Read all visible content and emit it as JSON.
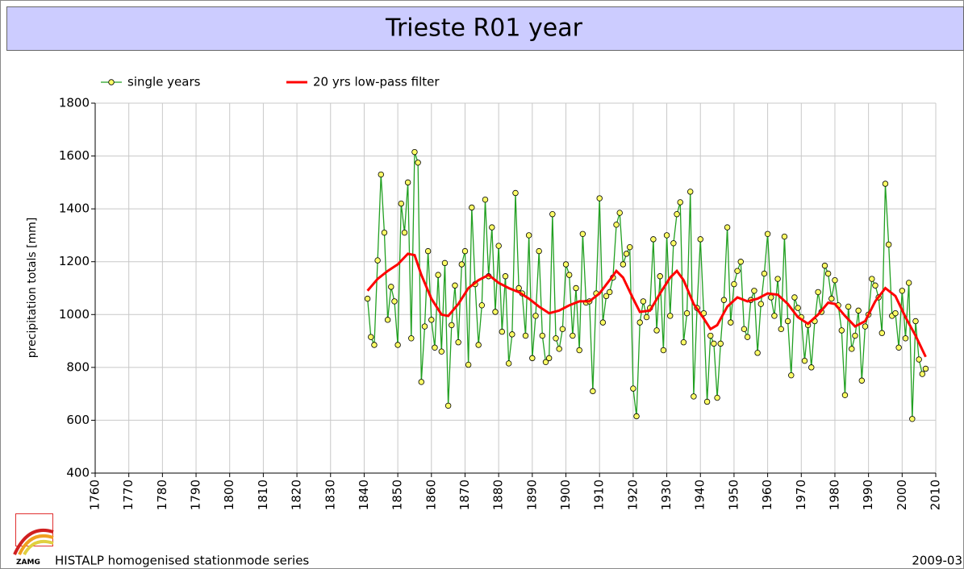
{
  "chart_data": {
    "type": "line",
    "title": "Trieste R01 year",
    "ylabel": "precipitation totals [mm]",
    "footer": "HISTALP homogenised stationmode series",
    "date": "2009-03",
    "logo": "ZAMG",
    "xlim": [
      1760,
      2010
    ],
    "ylim": [
      400,
      1800
    ],
    "xticks": [
      1760,
      1770,
      1780,
      1790,
      1800,
      1810,
      1820,
      1830,
      1840,
      1850,
      1860,
      1870,
      1880,
      1890,
      1900,
      1910,
      1920,
      1930,
      1940,
      1950,
      1960,
      1970,
      1980,
      1990,
      2000,
      2010
    ],
    "yticks": [
      400,
      600,
      800,
      1000,
      1200,
      1400,
      1600,
      1800
    ],
    "grid": true,
    "legend": "top-left",
    "series": [
      {
        "name": "single years",
        "color": "#22a022",
        "marker_color": "#ffff66",
        "x": [
          1841,
          1842,
          1843,
          1844,
          1845,
          1846,
          1847,
          1848,
          1849,
          1850,
          1851,
          1852,
          1853,
          1854,
          1855,
          1856,
          1857,
          1858,
          1859,
          1860,
          1861,
          1862,
          1863,
          1864,
          1865,
          1866,
          1867,
          1868,
          1869,
          1870,
          1871,
          1872,
          1873,
          1874,
          1875,
          1876,
          1877,
          1878,
          1879,
          1880,
          1881,
          1882,
          1883,
          1884,
          1885,
          1886,
          1887,
          1888,
          1889,
          1890,
          1891,
          1892,
          1893,
          1894,
          1895,
          1896,
          1897,
          1898,
          1899,
          1900,
          1901,
          1902,
          1903,
          1904,
          1905,
          1906,
          1907,
          1908,
          1909,
          1910,
          1911,
          1912,
          1913,
          1914,
          1915,
          1916,
          1917,
          1918,
          1919,
          1920,
          1921,
          1922,
          1923,
          1924,
          1925,
          1926,
          1927,
          1928,
          1929,
          1930,
          1931,
          1932,
          1933,
          1934,
          1935,
          1936,
          1937,
          1938,
          1939,
          1940,
          1941,
          1942,
          1943,
          1944,
          1945,
          1946,
          1947,
          1948,
          1949,
          1950,
          1951,
          1952,
          1953,
          1954,
          1955,
          1956,
          1957,
          1958,
          1959,
          1960,
          1961,
          1962,
          1963,
          1964,
          1965,
          1966,
          1967,
          1968,
          1969,
          1970,
          1971,
          1972,
          1973,
          1974,
          1975,
          1976,
          1977,
          1978,
          1979,
          1980,
          1981,
          1982,
          1983,
          1984,
          1985,
          1986,
          1987,
          1988,
          1989,
          1990,
          1991,
          1992,
          1993,
          1994,
          1995,
          1996,
          1997,
          1998,
          1999,
          2000,
          2001,
          2002,
          2003,
          2004,
          2005,
          2006,
          2007
        ],
        "values": [
          1060,
          915,
          885,
          1205,
          1530,
          1310,
          980,
          1105,
          1050,
          885,
          1420,
          1310,
          1500,
          910,
          1615,
          1575,
          745,
          955,
          1240,
          980,
          875,
          1150,
          860,
          1195,
          655,
          960,
          1110,
          895,
          1190,
          1240,
          810,
          1405,
          1115,
          885,
          1035,
          1435,
          1145,
          1330,
          1010,
          1260,
          935,
          1145,
          815,
          925,
          1460,
          1100,
          1080,
          920,
          1300,
          835,
          995,
          1240,
          920,
          820,
          835,
          1380,
          910,
          870,
          945,
          1190,
          1150,
          920,
          1100,
          865,
          1305,
          1045,
          1050,
          710,
          1080,
          1440,
          970,
          1070,
          1085,
          1140,
          1340,
          1385,
          1190,
          1230,
          1255,
          720,
          615,
          970,
          1050,
          990,
          1025,
          1285,
          940,
          1145,
          865,
          1300,
          995,
          1270,
          1380,
          1425,
          895,
          1005,
          1465,
          690,
          1025,
          1285,
          1005,
          670,
          920,
          890,
          685,
          890,
          1055,
          1330,
          970,
          1115,
          1165,
          1200,
          945,
          915,
          1055,
          1090,
          855,
          1040,
          1155,
          1305,
          1065,
          995,
          1135,
          945,
          1295,
          975,
          770,
          1065,
          1025,
          990,
          825,
          960,
          800,
          975,
          1085,
          1010,
          1185,
          1155,
          1060,
          1130,
          1035,
          940,
          695,
          1030,
          870,
          920,
          1015,
          750,
          955,
          1000,
          1135,
          1110,
          1065,
          930,
          1495,
          1265,
          995,
          1005,
          875,
          1090,
          910,
          1120,
          605,
          975,
          830,
          775,
          795
        ]
      },
      {
        "name": "20 yrs low-pass filter",
        "color": "#ff0000",
        "x": [
          1841,
          1844,
          1847,
          1850,
          1853,
          1855,
          1857,
          1860,
          1863,
          1865,
          1868,
          1871,
          1874,
          1877,
          1880,
          1883,
          1886,
          1889,
          1892,
          1895,
          1898,
          1901,
          1904,
          1907,
          1910,
          1913,
          1915,
          1917,
          1920,
          1922,
          1925,
          1928,
          1931,
          1933,
          1935,
          1938,
          1941,
          1943,
          1945,
          1948,
          1951,
          1954,
          1957,
          1960,
          1963,
          1966,
          1969,
          1972,
          1975,
          1978,
          1980,
          1983,
          1986,
          1989,
          1992,
          1995,
          1998,
          2001,
          2004,
          2007
        ],
        "values": [
          1090,
          1135,
          1165,
          1190,
          1230,
          1225,
          1150,
          1060,
          1000,
          995,
          1040,
          1100,
          1130,
          1150,
          1120,
          1100,
          1085,
          1060,
          1030,
          1005,
          1015,
          1035,
          1050,
          1050,
          1080,
          1130,
          1165,
          1140,
          1060,
          1010,
          1015,
          1080,
          1140,
          1165,
          1130,
          1040,
          985,
          945,
          960,
          1030,
          1065,
          1050,
          1060,
          1080,
          1075,
          1040,
          990,
          965,
          1000,
          1045,
          1040,
          995,
          955,
          975,
          1050,
          1100,
          1070,
          990,
          920,
          840
        ]
      }
    ]
  }
}
